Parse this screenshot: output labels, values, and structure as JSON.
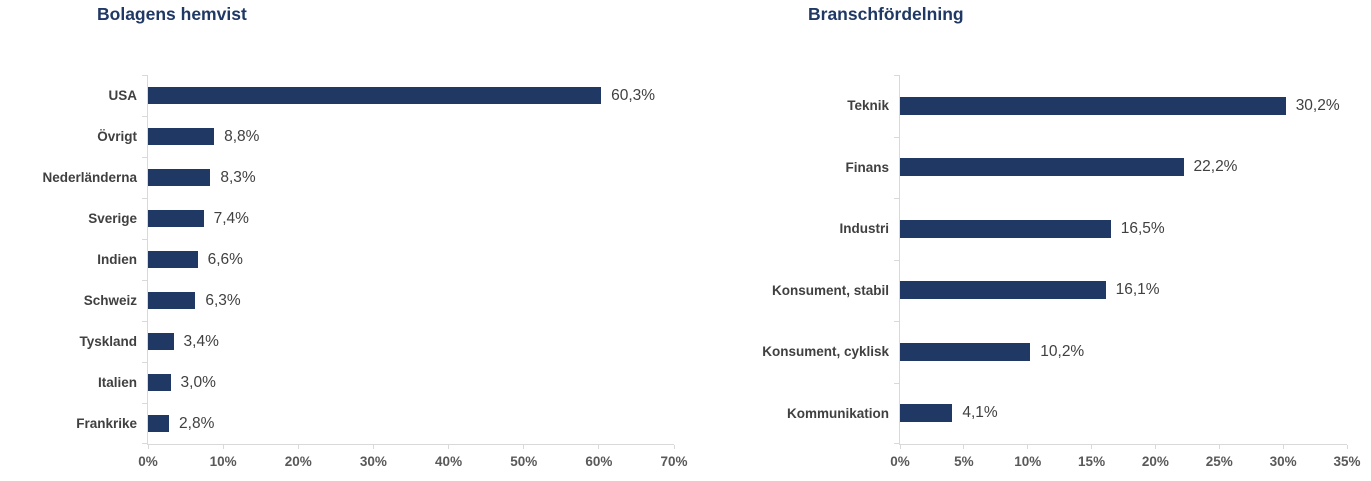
{
  "page": {
    "background": "#ffffff"
  },
  "colors": {
    "bar": "#1f3864",
    "title": "#1f3864",
    "category_label": "#404040",
    "value_label": "#404040",
    "tick_label": "#595959",
    "axis_line": "#d9d9d9"
  },
  "chart_data": [
    {
      "type": "bar",
      "orientation": "horizontal",
      "title": "Bolagens hemvist",
      "categories": [
        "USA",
        "Övrigt",
        "Nederländerna",
        "Sverige",
        "Indien",
        "Schweiz",
        "Tyskland",
        "Italien",
        "Frankrike"
      ],
      "values": [
        60.3,
        8.8,
        8.3,
        7.4,
        6.6,
        6.3,
        3.4,
        3.0,
        2.8
      ],
      "value_labels": [
        "60,3%",
        "8,8%",
        "8,3%",
        "7,4%",
        "6,6%",
        "6,3%",
        "3,4%",
        "3,0%",
        "2,8%"
      ],
      "xlim": [
        0,
        70
      ],
      "x_ticks": [
        "0%",
        "10%",
        "20%",
        "30%",
        "40%",
        "50%",
        "60%",
        "70%"
      ],
      "grid": false,
      "legend": "none",
      "bar_color": "#1f3864"
    },
    {
      "type": "bar",
      "orientation": "horizontal",
      "title": "Branschfördelning",
      "categories": [
        "Teknik",
        "Finans",
        "Industri",
        "Konsument, stabil",
        "Konsument, cyklisk",
        "Kommunikation"
      ],
      "values": [
        30.2,
        22.2,
        16.5,
        16.1,
        10.2,
        4.1
      ],
      "value_labels": [
        "30,2%",
        "22,2%",
        "16,5%",
        "16,1%",
        "10,2%",
        "4,1%"
      ],
      "xlim": [
        0,
        35
      ],
      "x_ticks": [
        "0%",
        "5%",
        "10%",
        "15%",
        "20%",
        "25%",
        "30%",
        "35%"
      ],
      "grid": false,
      "legend": "none",
      "bar_color": "#1f3864"
    }
  ]
}
